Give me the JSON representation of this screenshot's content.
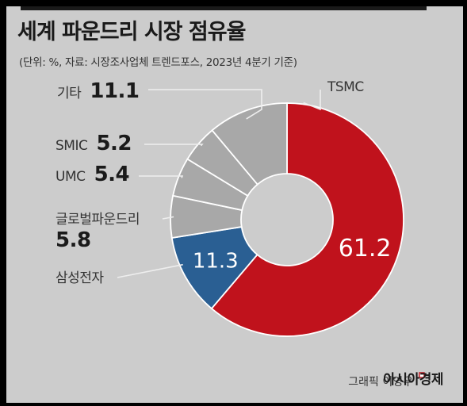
{
  "header": {
    "title": "세계 파운드리 시장 점유율",
    "subtitle": "(단위: %, 자료: 시장조사업체 트렌드포스, 2023년 4분기 기준)"
  },
  "chart_data": {
    "type": "pie",
    "donut": true,
    "unit": "%",
    "categories": [
      "TSMC",
      "삼성전자",
      "글로벌파운드리",
      "UMC",
      "SMIC",
      "기타"
    ],
    "values": [
      61.2,
      11.3,
      5.8,
      5.4,
      5.2,
      11.1
    ],
    "colors": [
      "#c0121c",
      "#2a5f93",
      "#a8a8a8",
      "#a8a8a8",
      "#a8a8a8",
      "#a8a8a8"
    ],
    "inside_labels": [
      "61.2",
      "11.3",
      "",
      "",
      "",
      ""
    ],
    "outside_labels": [
      {
        "name": "기타",
        "value": "11.1"
      },
      {
        "name": "SMIC",
        "value": "5.2"
      },
      {
        "name": "UMC",
        "value": "5.4"
      },
      {
        "name": "글로벌파운드리",
        "value": "5.8"
      },
      {
        "name": "삼성전자",
        "value": ""
      }
    ],
    "top_label": "TSMC"
  },
  "footer": {
    "credit_prefix": "그래픽 이영우",
    "credit_brand": "아시아경제"
  }
}
